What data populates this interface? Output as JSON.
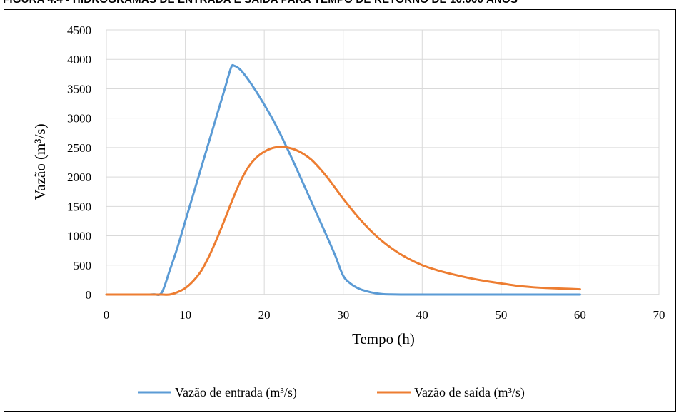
{
  "caption": "FIGURA 4.4 - HIDROGRAMAS DE ENTRADA E SAÍDA PARA TEMPO DE RETORNO DE 10.000 ANOS",
  "chart_data": {
    "type": "line",
    "title": "",
    "xlabel": "Tempo (h)",
    "ylabel": "Vazão (m³/s)",
    "xlim": [
      0,
      70
    ],
    "ylim": [
      0,
      4500
    ],
    "xticks": [
      0,
      10,
      20,
      30,
      40,
      50,
      60,
      70
    ],
    "yticks": [
      0,
      500,
      1000,
      1500,
      2000,
      2500,
      3000,
      3500,
      4000,
      4500
    ],
    "grid": true,
    "legend_position": "bottom",
    "series": [
      {
        "name": "Vazão de entrada (m³/s)",
        "color": "#5b9bd5",
        "x": [
          0,
          2,
          4,
          5,
          6,
          7,
          8,
          9,
          10,
          11,
          12,
          13,
          14,
          15,
          15.8,
          16.2,
          17,
          18,
          19,
          20,
          21,
          22,
          23,
          24,
          25,
          26,
          27,
          28,
          29,
          30,
          31,
          32,
          33,
          34,
          35,
          36,
          38,
          40,
          45,
          50,
          55,
          60
        ],
        "y": [
          0,
          0,
          0,
          0,
          5,
          30,
          400,
          800,
          1250,
          1700,
          2150,
          2600,
          3050,
          3500,
          3860,
          3890,
          3820,
          3650,
          3450,
          3230,
          3000,
          2740,
          2460,
          2170,
          1870,
          1570,
          1270,
          970,
          660,
          320,
          180,
          100,
          55,
          25,
          8,
          3,
          0,
          0,
          0,
          0,
          0,
          0
        ]
      },
      {
        "name": "Vazão de saída (m³/s)",
        "color": "#ed7d31",
        "x": [
          0,
          2,
          4,
          6,
          7,
          8,
          9,
          10,
          11,
          12,
          13,
          14,
          15,
          16,
          17,
          18,
          19,
          20,
          21,
          22,
          23,
          24,
          25,
          26,
          27,
          28,
          29,
          30,
          32,
          34,
          36,
          38,
          40,
          42,
          44,
          46,
          48,
          50,
          52,
          54,
          56,
          58,
          60
        ],
        "y": [
          0,
          0,
          0,
          0,
          0,
          0,
          40,
          110,
          230,
          400,
          650,
          950,
          1280,
          1620,
          1930,
          2170,
          2330,
          2430,
          2490,
          2510,
          2500,
          2460,
          2390,
          2290,
          2150,
          1990,
          1810,
          1630,
          1300,
          1020,
          800,
          630,
          500,
          410,
          340,
          280,
          230,
          190,
          150,
          125,
          110,
          100,
          90
        ]
      }
    ]
  }
}
